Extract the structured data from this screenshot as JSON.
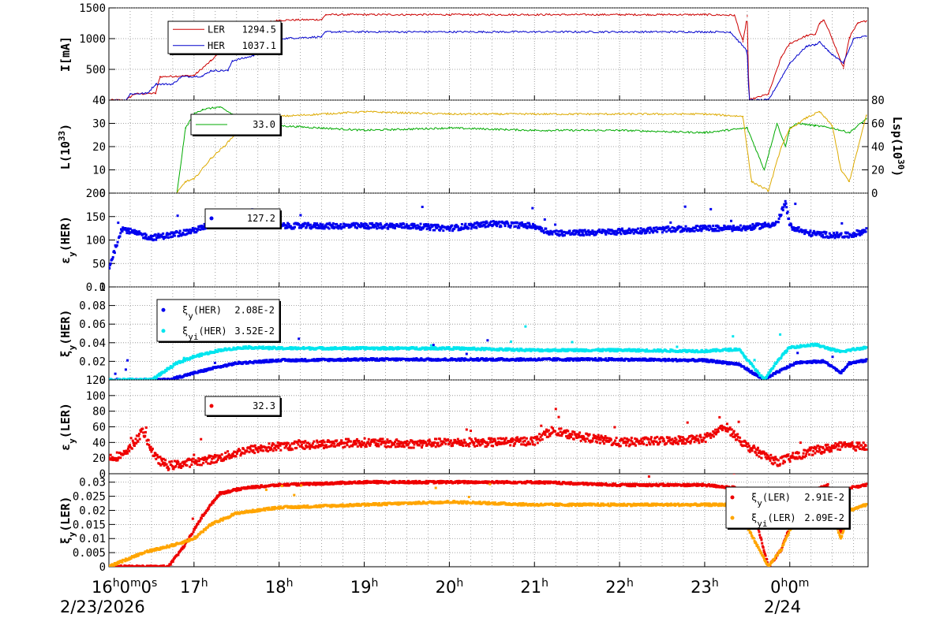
{
  "chart_data": [
    {
      "type": "line",
      "ylabel": "I[mA]",
      "ylim": [
        0,
        1500
      ],
      "y_ticks": [
        "0",
        "500",
        "1000",
        "1500"
      ],
      "series": [
        {
          "name": "LER",
          "legend_value": "1294.5",
          "color": "#cc0000",
          "x": [
            16.0,
            16.2,
            16.3,
            16.55,
            16.6,
            16.9,
            17.0,
            17.2,
            17.4,
            17.5,
            17.8,
            18.0,
            18.5,
            18.55,
            20.0,
            22.0,
            23.0,
            23.35,
            23.45,
            23.5,
            23.52,
            23.75,
            23.9,
            24.0,
            24.2,
            24.3,
            24.35,
            24.4,
            24.5,
            24.63,
            24.7,
            24.8,
            24.9
          ],
          "y": [
            0,
            0,
            100,
            110,
            380,
            395,
            400,
            640,
            900,
            1240,
            1250,
            1300,
            1310,
            1390,
            1390,
            1390,
            1390,
            1380,
            950,
            1370,
            0,
            100,
            700,
            920,
            1050,
            1070,
            1250,
            1300,
            1000,
            520,
            1020,
            1250,
            1290
          ]
        },
        {
          "name": "HER",
          "legend_value": "1037.1",
          "color": "#0000cc",
          "x": [
            16.0,
            16.2,
            16.25,
            16.45,
            16.55,
            16.75,
            16.85,
            17.1,
            17.2,
            17.4,
            17.45,
            17.7,
            17.75,
            18.0,
            18.5,
            18.55,
            20.0,
            22.0,
            23.0,
            23.3,
            23.5,
            23.52,
            23.75,
            24.0,
            24.2,
            24.3,
            24.35,
            24.45,
            24.63,
            24.75,
            24.9
          ],
          "y": [
            0,
            0,
            100,
            110,
            260,
            260,
            380,
            390,
            480,
            480,
            640,
            720,
            890,
            1000,
            1030,
            1110,
            1110,
            1110,
            1110,
            1110,
            800,
            0,
            0,
            600,
            880,
            900,
            950,
            800,
            600,
            1000,
            1040
          ]
        }
      ]
    },
    {
      "type": "line",
      "ylabel": "L(10^33)",
      "ylabel_right": "Lsp(10^30)",
      "ylim": [
        0,
        40
      ],
      "ylim_right": [
        0,
        80
      ],
      "y_ticks": [
        "0",
        "10",
        "20",
        "30",
        "40"
      ],
      "y_ticks_right": [
        "0",
        "20",
        "40",
        "60",
        "80"
      ],
      "legend_value": "33.0",
      "series": [
        {
          "name": "L",
          "color": "#00aa00",
          "x": [
            16.8,
            16.9,
            17.0,
            17.1,
            17.3,
            17.6,
            18.0,
            19.0,
            20.0,
            21.0,
            22.0,
            23.0,
            23.5,
            23.7,
            23.85,
            23.95,
            24.0,
            24.1,
            24.3,
            24.5,
            24.7,
            24.9
          ],
          "y": [
            0,
            28,
            34,
            36,
            37,
            31,
            29,
            27,
            28,
            27,
            27,
            26,
            28,
            10,
            30,
            20,
            28,
            30,
            29,
            28,
            26,
            32
          ]
        },
        {
          "name": "Lsp",
          "color": "#ddaa00",
          "axis": "right",
          "x": [
            16.8,
            16.9,
            17.0,
            17.2,
            17.35,
            17.6,
            18.0,
            19.0,
            20.0,
            21.0,
            22.0,
            23.0,
            23.45,
            23.55,
            23.75,
            23.9,
            24.0,
            24.2,
            24.35,
            24.5,
            24.6,
            24.7,
            24.9
          ],
          "y": [
            0,
            10,
            12,
            30,
            40,
            60,
            66,
            70,
            68,
            68,
            68,
            68,
            66,
            10,
            2,
            40,
            55,
            65,
            70,
            58,
            20,
            10,
            67
          ]
        }
      ]
    },
    {
      "type": "scatter",
      "ylabel": "εy(HER)",
      "ylim": [
        0,
        200
      ],
      "y_ticks": [
        "0",
        "50",
        "100",
        "150",
        "200"
      ],
      "legend_value": "127.2",
      "series": [
        {
          "name": "",
          "color": "#0000ee",
          "x": [
            16.0,
            16.15,
            16.3,
            16.5,
            16.7,
            17.0,
            17.3,
            17.6,
            18.0,
            18.5,
            19.0,
            19.5,
            20.0,
            20.5,
            21.0,
            21.2,
            21.5,
            22.0,
            22.5,
            23.0,
            23.45,
            23.85,
            23.95,
            24.0,
            24.2,
            24.5,
            24.7,
            24.9
          ],
          "y": [
            40,
            125,
            115,
            105,
            110,
            120,
            140,
            135,
            130,
            130,
            130,
            130,
            125,
            135,
            130,
            115,
            115,
            118,
            122,
            125,
            125,
            135,
            180,
            130,
            115,
            110,
            110,
            120
          ]
        }
      ]
    },
    {
      "type": "scatter",
      "ylabel": "ξy(HER)",
      "ylim": [
        0,
        0.1
      ],
      "y_ticks": [
        "0",
        "0.02",
        "0.04",
        "0.06",
        "0.08",
        "0.1"
      ],
      "series": [
        {
          "name": "ξy(HER)",
          "legend_value": "2.08E-2",
          "color": "#0000ee",
          "x": [
            16.0,
            16.7,
            16.9,
            17.2,
            17.5,
            18.0,
            19.0,
            20.0,
            21.0,
            22.0,
            23.0,
            23.4,
            23.7,
            23.85,
            24.0,
            24.1,
            24.4,
            24.6,
            24.7,
            24.9
          ],
          "y": [
            0,
            0,
            0.005,
            0.012,
            0.018,
            0.021,
            0.022,
            0.022,
            0.022,
            0.022,
            0.021,
            0.017,
            0.0,
            0.008,
            0.015,
            0.019,
            0.02,
            0.008,
            0.018,
            0.021
          ]
        },
        {
          "name": "ξyi(HER)",
          "legend_value": "3.52E-2",
          "color": "#00e5ee",
          "x": [
            16.0,
            16.5,
            16.8,
            17.0,
            17.3,
            17.6,
            18.0,
            19.0,
            20.0,
            21.0,
            22.0,
            23.0,
            23.4,
            23.7,
            23.85,
            24.0,
            24.3,
            24.6,
            24.7,
            24.9
          ],
          "y": [
            0,
            0,
            0.018,
            0.025,
            0.032,
            0.035,
            0.034,
            0.034,
            0.034,
            0.032,
            0.032,
            0.031,
            0.033,
            0.0,
            0.02,
            0.035,
            0.038,
            0.03,
            0.032,
            0.035
          ]
        }
      ]
    },
    {
      "type": "scatter",
      "ylabel": "εy(LER)",
      "ylim": [
        0,
        120
      ],
      "y_ticks": [
        "0",
        "20",
        "40",
        "60",
        "80",
        "100",
        "120"
      ],
      "legend_value": "32.3",
      "series": [
        {
          "name": "",
          "color": "#ee0000",
          "x": [
            16.0,
            16.2,
            16.4,
            16.55,
            16.7,
            17.0,
            17.3,
            17.6,
            18.0,
            18.5,
            19.0,
            19.5,
            20.0,
            20.5,
            21.0,
            21.2,
            21.5,
            22.0,
            22.5,
            23.0,
            23.25,
            23.5,
            23.85,
            24.0,
            24.3,
            24.6,
            24.9
          ],
          "y": [
            20,
            25,
            55,
            20,
            10,
            15,
            20,
            30,
            35,
            38,
            40,
            38,
            40,
            40,
            42,
            55,
            48,
            40,
            42,
            45,
            60,
            35,
            15,
            20,
            30,
            35,
            35
          ]
        }
      ]
    },
    {
      "type": "scatter",
      "ylabel": "ξy(LER)",
      "ylim": [
        0,
        0.033
      ],
      "y_ticks": [
        "0",
        "0.005",
        "0.01",
        "0.015",
        "0.02",
        "0.025",
        "0.03"
      ],
      "series": [
        {
          "name": "ξy(LER)",
          "legend_value": "2.91E-2",
          "color": "#ee0000",
          "x": [
            16.0,
            16.7,
            16.9,
            17.1,
            17.3,
            17.6,
            18.0,
            19.0,
            20.0,
            21.0,
            22.0,
            23.0,
            23.35,
            23.45,
            23.5,
            23.75,
            23.9,
            24.0,
            24.2,
            24.35,
            24.45,
            24.6,
            24.7,
            24.9
          ],
          "y": [
            0,
            0,
            0.008,
            0.018,
            0.026,
            0.028,
            0.029,
            0.03,
            0.03,
            0.03,
            0.029,
            0.029,
            0.028,
            0.025,
            0.028,
            0.0,
            0.006,
            0.014,
            0.023,
            0.028,
            0.029,
            0.012,
            0.028,
            0.029
          ]
        },
        {
          "name": "ξyi(LER)",
          "legend_value": "2.09E-2",
          "color": "#ffa500",
          "x": [
            16.0,
            16.4,
            16.8,
            17.0,
            17.2,
            17.5,
            18.0,
            19.0,
            20.0,
            21.0,
            22.0,
            23.0,
            23.35,
            23.45,
            23.75,
            23.9,
            24.0,
            24.2,
            24.35,
            24.45,
            24.6,
            24.7,
            24.9
          ],
          "y": [
            0,
            0.005,
            0.008,
            0.01,
            0.015,
            0.019,
            0.021,
            0.022,
            0.023,
            0.022,
            0.022,
            0.022,
            0.022,
            0.017,
            0.0,
            0.006,
            0.013,
            0.022,
            0.025,
            0.023,
            0.01,
            0.02,
            0.022
          ]
        }
      ]
    }
  ],
  "time_axis": {
    "xlim": [
      16.0,
      24.92
    ],
    "major_ticks": [
      {
        "x": 16.0,
        "label": "16h0m0s"
      },
      {
        "x": 17.0,
        "label": "17h"
      },
      {
        "x": 18.0,
        "label": "18h"
      },
      {
        "x": 19.0,
        "label": "19h"
      },
      {
        "x": 20.0,
        "label": "20h"
      },
      {
        "x": 21.0,
        "label": "21h"
      },
      {
        "x": 22.0,
        "label": "22h"
      },
      {
        "x": 23.0,
        "label": "23h"
      },
      {
        "x": 24.0,
        "label": "0h0m"
      }
    ],
    "date_left": "2/23/2026",
    "date_right": "2/24"
  }
}
